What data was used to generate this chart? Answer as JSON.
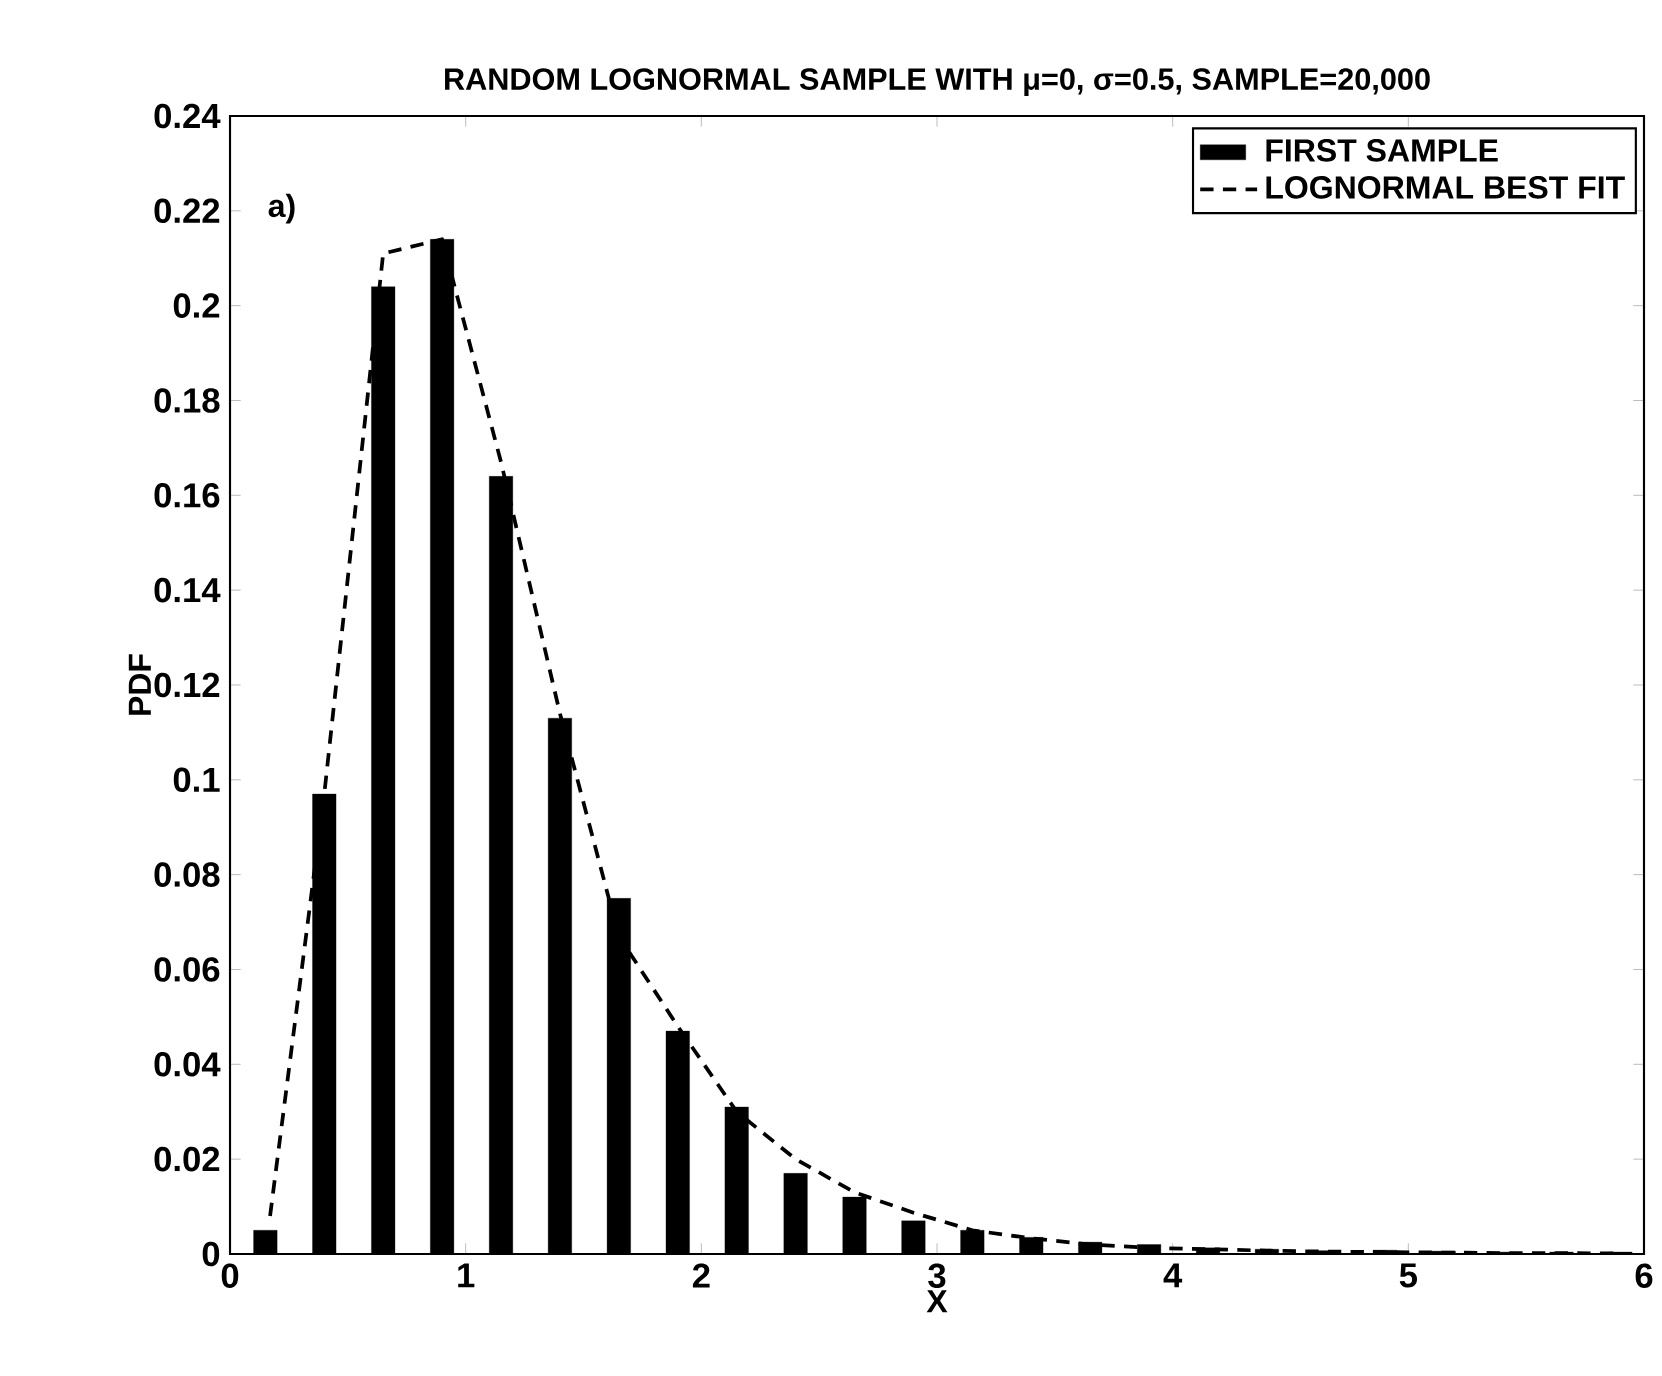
{
  "chart_data": {
    "type": "bar",
    "title": "RANDOM LOGNORMAL SAMPLE WITH μ=0, σ=0.5, SAMPLE=20,000",
    "xlabel": "X",
    "ylabel": "PDF",
    "annotations": [
      "a)"
    ],
    "x": [
      0.15,
      0.4,
      0.65,
      0.9,
      1.15,
      1.4,
      1.65,
      1.9,
      2.15,
      2.4,
      2.65,
      2.9,
      3.15,
      3.4,
      3.65,
      3.9,
      4.15,
      4.4,
      4.65,
      4.9,
      5.15,
      5.4,
      5.65,
      5.9
    ],
    "series": [
      {
        "name": "FIRST SAMPLE",
        "color": "#000000",
        "values": [
          0.005,
          0.097,
          0.204,
          0.214,
          0.164,
          0.113,
          0.075,
          0.047,
          0.031,
          0.017,
          0.012,
          0.007,
          0.005,
          0.0035,
          0.0025,
          0.002,
          0.0013,
          0.001,
          0.0007,
          0.0008,
          0.0006,
          0.0004,
          0.0004,
          0.0004
        ]
      },
      {
        "name": "LOGNORMAL BEST FIT",
        "type": "line",
        "line_style": "dashed",
        "color": "#000000",
        "x": [
          0.17,
          0.4,
          0.65,
          0.9,
          1.15,
          1.4,
          1.65,
          1.9,
          2.15,
          2.4,
          2.65,
          2.9,
          3.15,
          3.4,
          3.65,
          3.9,
          4.15,
          4.4,
          4.65,
          4.9,
          5.15,
          5.4,
          5.65,
          5.9
        ],
        "values": [
          0.008,
          0.097,
          0.211,
          0.214,
          0.167,
          0.114,
          0.067,
          0.048,
          0.03,
          0.02,
          0.013,
          0.0087,
          0.005,
          0.0033,
          0.002,
          0.0013,
          0.001,
          0.0007,
          0.0005,
          0.0004,
          0.0003,
          0.0002,
          0.0002,
          0.0001
        ]
      }
    ],
    "xlim": [
      0,
      6
    ],
    "ylim": [
      0,
      0.24
    ],
    "xticks": [
      0,
      1,
      2,
      3,
      4,
      5,
      6
    ],
    "yticks": [
      0,
      0.02,
      0.04,
      0.06,
      0.08,
      0.1,
      0.12,
      0.14,
      0.16,
      0.18,
      0.2,
      0.22,
      0.24
    ],
    "legend": "top right"
  }
}
